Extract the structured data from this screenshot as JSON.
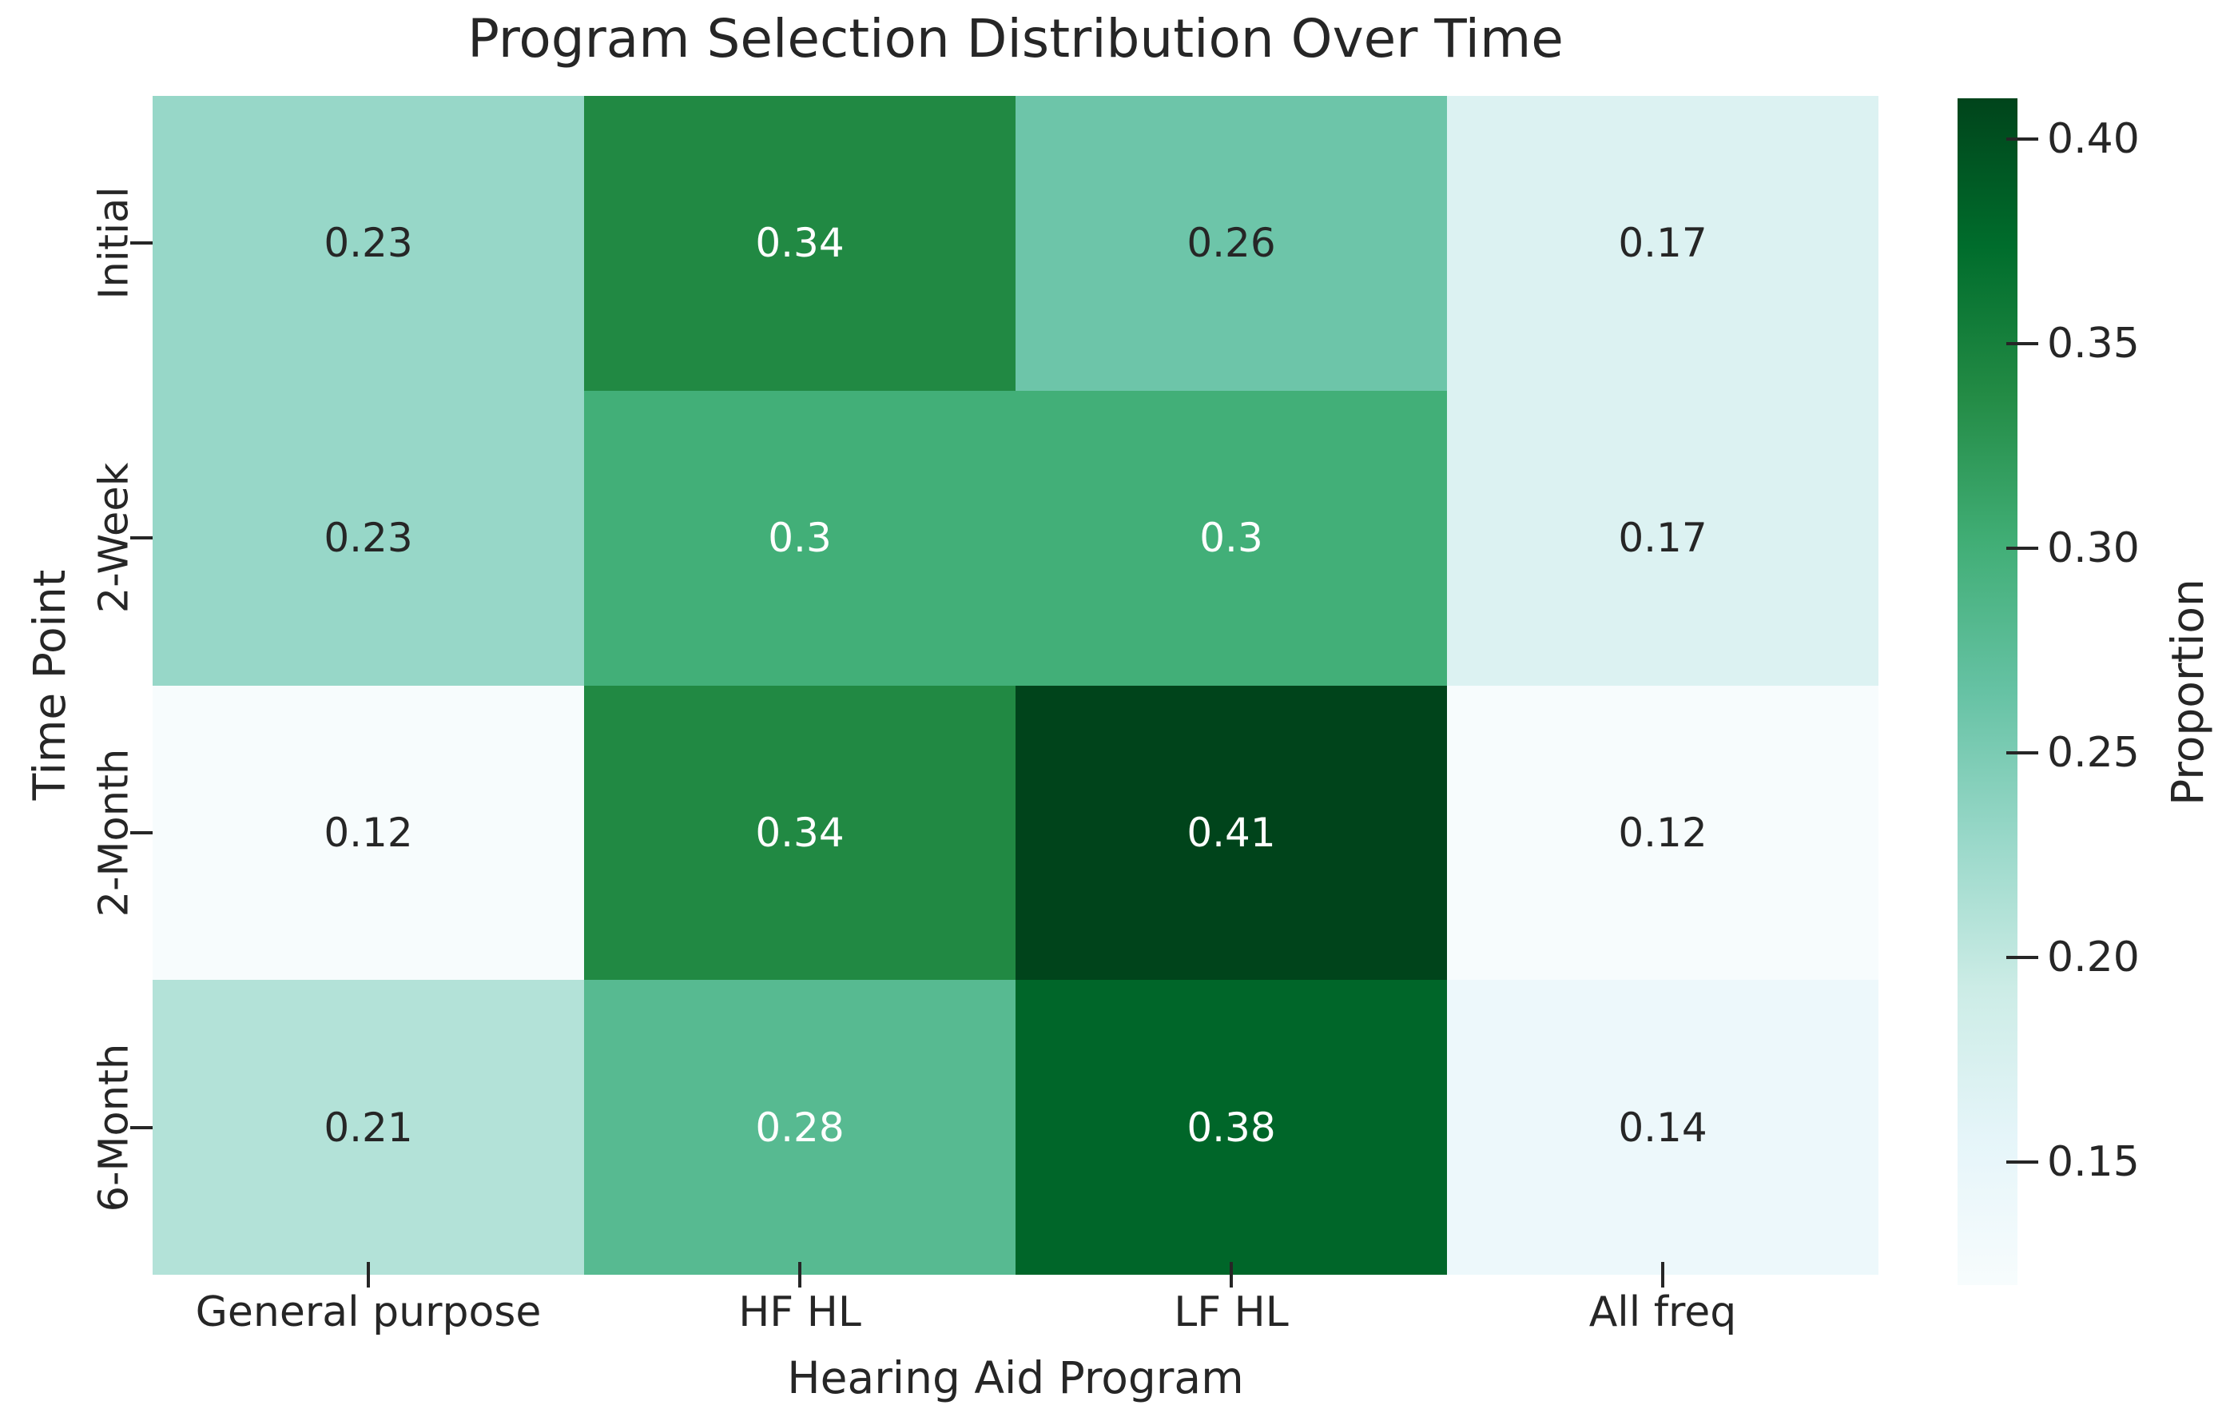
{
  "chart_data": {
    "type": "heatmap",
    "title": "Program Selection Distribution Over Time",
    "xlabel": "Hearing Aid Program",
    "ylabel": "Time Point",
    "categories": [
      "General purpose",
      "HF HL",
      "LF HL",
      "All freq"
    ],
    "rows": [
      "Initial",
      "2-Week",
      "2-Month",
      "6-Month"
    ],
    "values": [
      [
        0.23,
        0.34,
        0.26,
        0.17
      ],
      [
        0.23,
        0.3,
        0.3,
        0.17
      ],
      [
        0.12,
        0.34,
        0.41,
        0.12
      ],
      [
        0.21,
        0.28,
        0.38,
        0.14
      ]
    ],
    "vmin": 0.12,
    "vmax": 0.41,
    "grid": false,
    "colormap": {
      "name": "BuGn",
      "stops": [
        [
          0.0,
          "#f7fcfd"
        ],
        [
          0.125,
          "#e5f5f9"
        ],
        [
          0.25,
          "#ccece6"
        ],
        [
          0.375,
          "#99d8c9"
        ],
        [
          0.5,
          "#66c2a4"
        ],
        [
          0.625,
          "#41ae76"
        ],
        [
          0.75,
          "#238b45"
        ],
        [
          0.875,
          "#006d2c"
        ],
        [
          1.0,
          "#00441b"
        ]
      ]
    },
    "colorbar": {
      "label": "Proportion",
      "tick_labels": [
        "0.40",
        "0.35",
        "0.30",
        "0.25",
        "0.20",
        "0.15"
      ]
    },
    "annotation_text_colors": {
      "dark": "#262626",
      "light": "#ffffff"
    },
    "background": "#ffffff",
    "tick_color": "#262626"
  }
}
